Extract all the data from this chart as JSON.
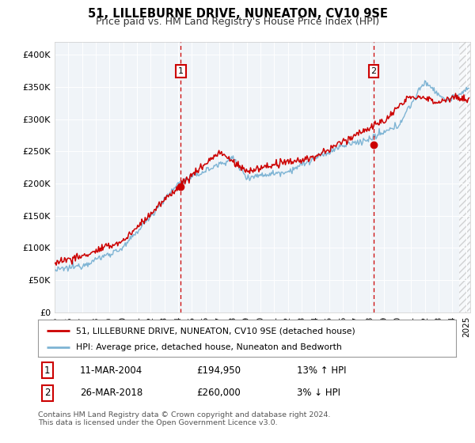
{
  "title": "51, LILLEBURNE DRIVE, NUNEATON, CV10 9SE",
  "subtitle": "Price paid vs. HM Land Registry's House Price Index (HPI)",
  "xlim_start": 1995.0,
  "xlim_end": 2025.3,
  "ylim_min": 0,
  "ylim_max": 420000,
  "yticks": [
    0,
    50000,
    100000,
    150000,
    200000,
    250000,
    300000,
    350000,
    400000
  ],
  "ytick_labels": [
    "£0",
    "£50K",
    "£100K",
    "£150K",
    "£200K",
    "£250K",
    "£300K",
    "£350K",
    "£400K"
  ],
  "bg_color": "#f0f4f8",
  "red_line_color": "#cc0000",
  "blue_line_color": "#7eb4d4",
  "sale1_x": 2004.2,
  "sale1_y": 194950,
  "sale2_x": 2018.25,
  "sale2_y": 260000,
  "hatch_start": 2024.5,
  "legend_label_red": "51, LILLEBURNE DRIVE, NUNEATON, CV10 9SE (detached house)",
  "legend_label_blue": "HPI: Average price, detached house, Nuneaton and Bedworth",
  "table_row1": [
    "1",
    "11-MAR-2004",
    "£194,950",
    "13% ↑ HPI"
  ],
  "table_row2": [
    "2",
    "26-MAR-2018",
    "£260,000",
    "3% ↓ HPI"
  ],
  "copyright": "Contains HM Land Registry data © Crown copyright and database right 2024.\nThis data is licensed under the Open Government Licence v3.0."
}
